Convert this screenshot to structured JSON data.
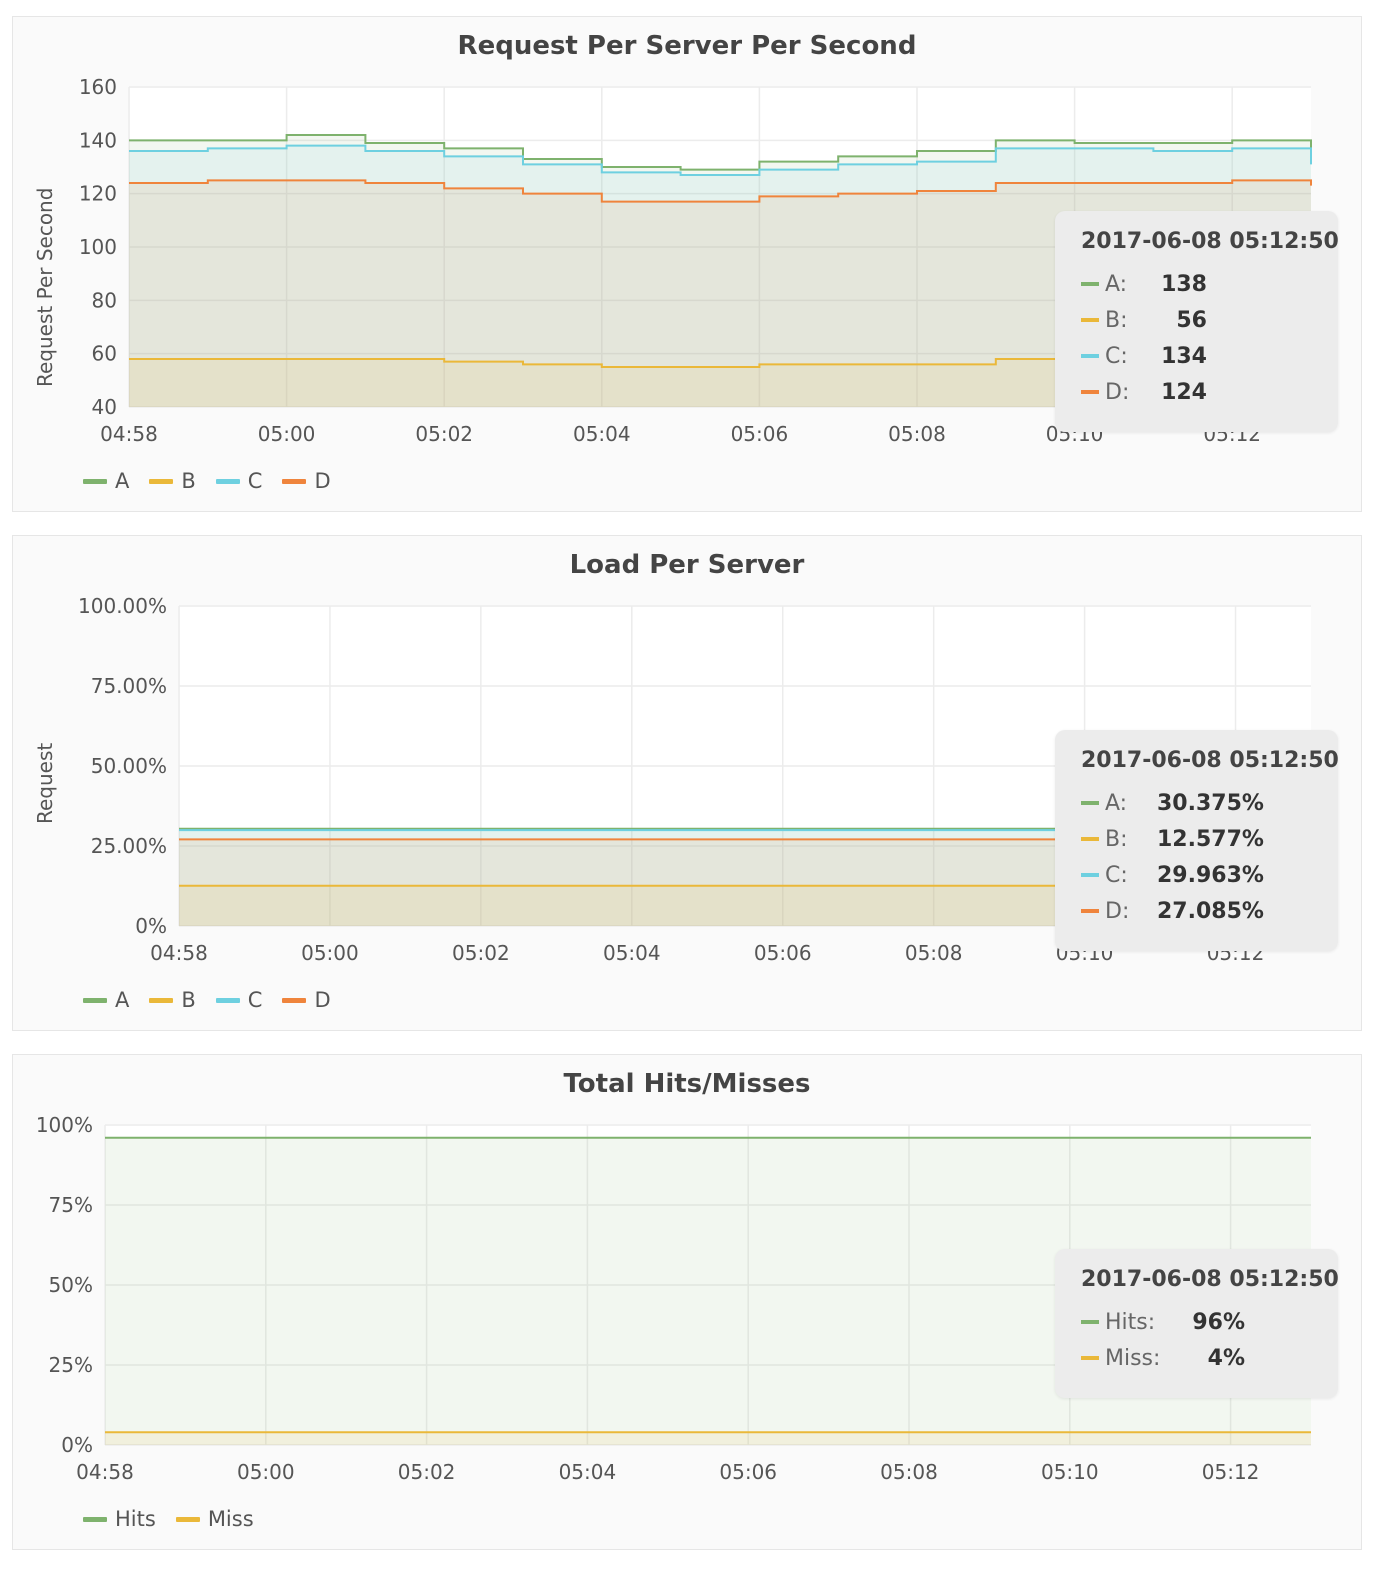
{
  "panels": [
    {
      "title": "Request Per Server Per Second",
      "ylabel": "Request Per Second",
      "tooltip_time": "2017-06-08 05:12:50",
      "tooltip": [
        {
          "name": "A:",
          "value": "138"
        },
        {
          "name": "B:",
          "value": "56"
        },
        {
          "name": "C:",
          "value": "134"
        },
        {
          "name": "D:",
          "value": "124"
        }
      ],
      "legend": [
        "A",
        "B",
        "C",
        "D"
      ]
    },
    {
      "title": "Load Per Server",
      "ylabel": "Request",
      "tooltip_time": "2017-06-08 05:12:50",
      "tooltip": [
        {
          "name": "A:",
          "value": "30.375%"
        },
        {
          "name": "B:",
          "value": "12.577%"
        },
        {
          "name": "C:",
          "value": "29.963%"
        },
        {
          "name": "D:",
          "value": "27.085%"
        }
      ],
      "legend": [
        "A",
        "B",
        "C",
        "D"
      ]
    },
    {
      "title": "Total Hits/Misses",
      "ylabel": "",
      "tooltip_time": "2017-06-08 05:12:50",
      "tooltip": [
        {
          "name": "Hits:",
          "value": "96%"
        },
        {
          "name": "Miss:",
          "value": "4%"
        }
      ],
      "legend": [
        "Hits",
        "Miss"
      ]
    }
  ],
  "colors": {
    "A": "#7eb26d",
    "B": "#eab839",
    "C": "#6ed0e0",
    "D": "#ef843c",
    "Hits": "#7eb26d",
    "Miss": "#eab839"
  },
  "chart_data": [
    {
      "type": "area",
      "title": "Request Per Server Per Second",
      "ylabel": "Request Per Second",
      "x_ticks": [
        "04:58",
        "05:00",
        "05:02",
        "05:04",
        "05:06",
        "05:08",
        "05:10",
        "05:12"
      ],
      "xlim": [
        "04:58",
        "05:13"
      ],
      "y_ticks": [
        "40",
        "60",
        "80",
        "100",
        "120",
        "140",
        "160"
      ],
      "ylim": [
        40,
        160
      ],
      "grid": true,
      "legend": "bottom-left",
      "x": [
        "04:58",
        "04:59",
        "05:00",
        "05:01",
        "05:02",
        "05:03",
        "05:04",
        "05:05",
        "05:06",
        "05:07",
        "05:08",
        "05:09",
        "05:10",
        "05:11",
        "05:12",
        "05:13"
      ],
      "series": [
        {
          "name": "A",
          "values": [
            140,
            140,
            142,
            139,
            137,
            133,
            130,
            129,
            132,
            134,
            136,
            140,
            139,
            139,
            140,
            136
          ]
        },
        {
          "name": "B",
          "values": [
            58,
            58,
            58,
            58,
            57,
            56,
            55,
            55,
            56,
            56,
            56,
            58,
            57,
            57,
            57,
            56
          ]
        },
        {
          "name": "C",
          "values": [
            136,
            137,
            138,
            136,
            134,
            131,
            128,
            127,
            129,
            131,
            132,
            137,
            137,
            136,
            137,
            131
          ]
        },
        {
          "name": "D",
          "values": [
            124,
            125,
            125,
            124,
            122,
            120,
            117,
            117,
            119,
            120,
            121,
            124,
            124,
            124,
            125,
            123
          ]
        }
      ]
    },
    {
      "type": "area",
      "title": "Load Per Server",
      "ylabel": "Request",
      "x_ticks": [
        "04:58",
        "05:00",
        "05:02",
        "05:04",
        "05:06",
        "05:08",
        "05:10",
        "05:12"
      ],
      "xlim": [
        "04:58",
        "05:13"
      ],
      "y_ticks": [
        "0%",
        "25.00%",
        "50.00%",
        "75.00%",
        "100.00%"
      ],
      "ylim": [
        0,
        100
      ],
      "grid": true,
      "legend": "bottom-left",
      "x": [
        "04:58",
        "05:13"
      ],
      "series": [
        {
          "name": "A",
          "values": [
            30.375,
            30.375
          ]
        },
        {
          "name": "B",
          "values": [
            12.577,
            12.577
          ]
        },
        {
          "name": "C",
          "values": [
            29.963,
            29.963
          ]
        },
        {
          "name": "D",
          "values": [
            27.085,
            27.085
          ]
        }
      ]
    },
    {
      "type": "area",
      "title": "Total Hits/Misses",
      "x_ticks": [
        "04:58",
        "05:00",
        "05:02",
        "05:04",
        "05:06",
        "05:08",
        "05:10",
        "05:12"
      ],
      "xlim": [
        "04:58",
        "05:13"
      ],
      "y_ticks": [
        "0%",
        "25%",
        "50%",
        "75%",
        "100%"
      ],
      "ylim": [
        0,
        100
      ],
      "grid": true,
      "legend": "bottom-left",
      "x": [
        "04:58",
        "05:13"
      ],
      "series": [
        {
          "name": "Hits",
          "values": [
            96,
            96
          ]
        },
        {
          "name": "Miss",
          "values": [
            4,
            4
          ]
        }
      ]
    }
  ]
}
